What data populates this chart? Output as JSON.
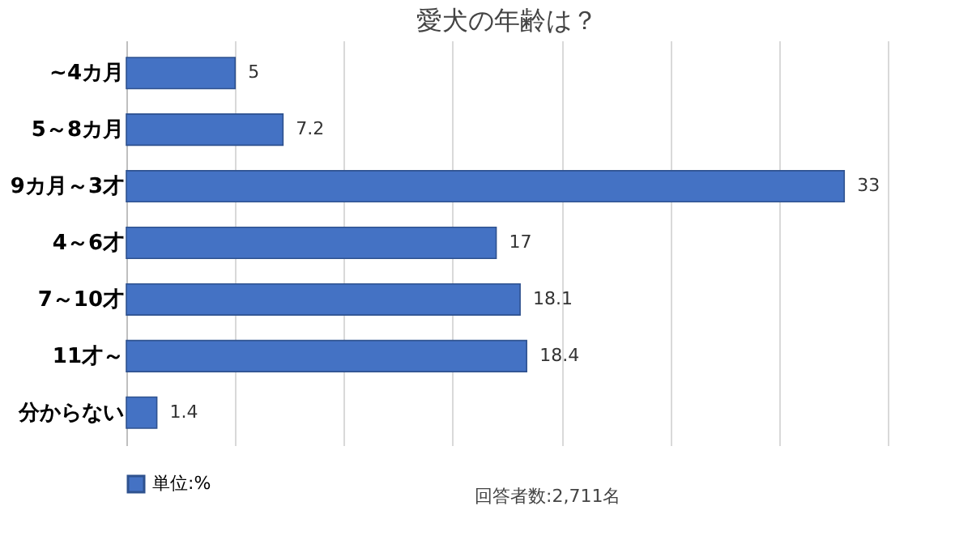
{
  "chart_data": {
    "type": "bar",
    "orientation": "horizontal",
    "title": "愛犬の年齢は？",
    "categories": [
      "~4カ月",
      "5～8カ月",
      "9カ月～3才",
      "4～6才",
      "7～10才",
      "11才～",
      "分からない"
    ],
    "series": [
      {
        "name": "単位:%",
        "color": "#4472c4",
        "values": [
          5,
          7.2,
          33,
          17,
          18.1,
          18.4,
          1.4
        ]
      }
    ],
    "xlim": [
      0,
      35
    ],
    "xticks": [
      {
        "value": 0,
        "label": null
      },
      {
        "value": 5,
        "label": null
      },
      {
        "value": 10,
        "label": null
      },
      {
        "value": 15,
        "label": null
      },
      {
        "value": 20,
        "label": null
      },
      {
        "value": 25,
        "label": null
      },
      {
        "value": 30,
        "label": null
      },
      {
        "value": 35,
        "label": null
      }
    ],
    "tick_labels": "y",
    "grid": "x",
    "data_labels": true,
    "legend": "bottom",
    "annotations": [
      "回答者数:2,711名"
    ]
  }
}
